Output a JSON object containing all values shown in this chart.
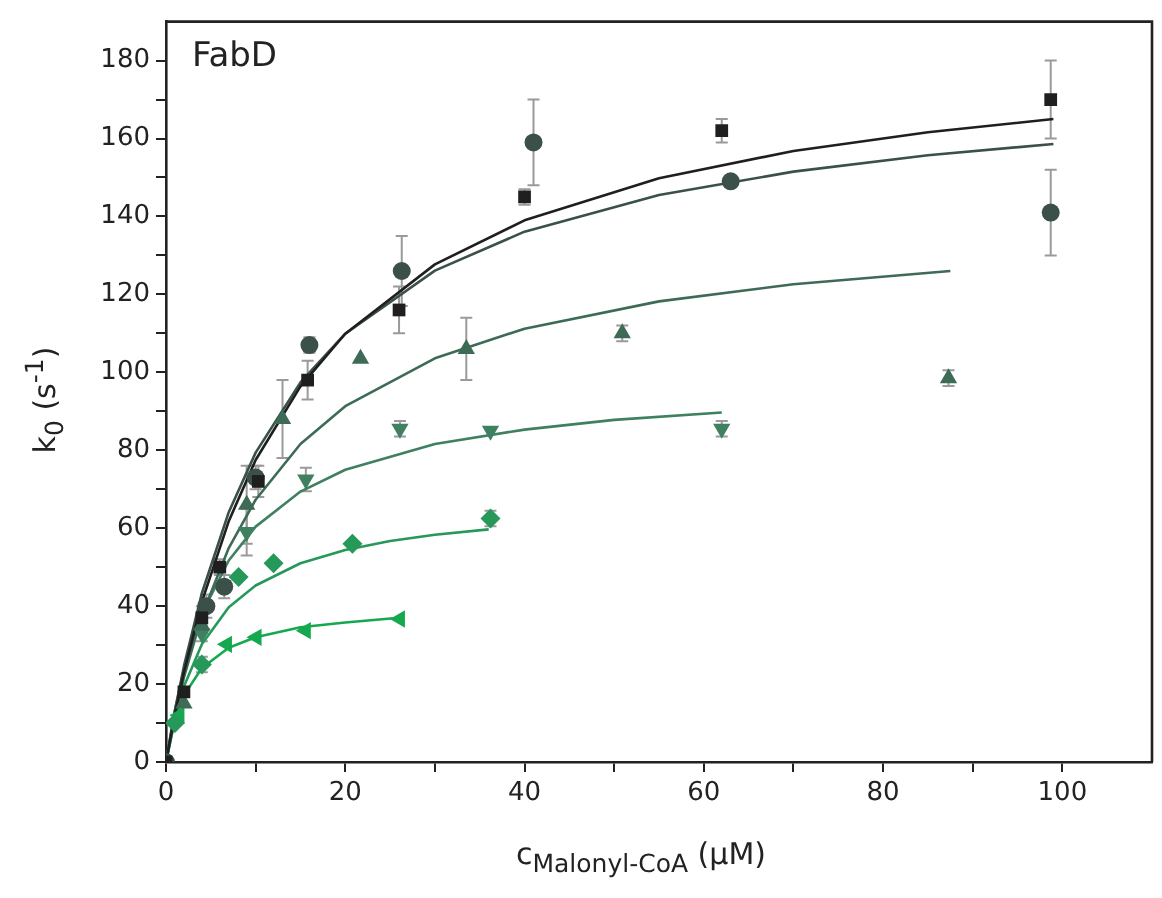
{
  "chart_data": {
    "type": "scatter",
    "title": "FabD",
    "xlabel": "c$_{Malonyl-CoA}$  (μM)",
    "ylabel": "k$_{0}$ (s$^{-1}$)",
    "xlim": [
      0,
      110
    ],
    "ylim": [
      0,
      190
    ],
    "xticks": [
      0,
      {
        "value": 10,
        "label": null
      },
      20,
      {
        "value": 30,
        "label": null
      },
      40,
      {
        "value": 50,
        "label": null
      },
      60,
      {
        "value": 70,
        "label": null
      },
      80,
      {
        "value": 90,
        "label": null
      },
      100
    ],
    "yticks": [
      0,
      {
        "value": 10,
        "label": null
      },
      20,
      {
        "value": 30,
        "label": null
      },
      40,
      {
        "value": 50,
        "label": null
      },
      60,
      {
        "value": 70,
        "label": null
      },
      80,
      {
        "value": 90,
        "label": null
      },
      100,
      {
        "value": 110,
        "label": null
      },
      120,
      {
        "value": 130,
        "label": null
      },
      140,
      {
        "value": 150,
        "label": null
      },
      160,
      {
        "value": 170,
        "label": null
      },
      180
    ],
    "grid": false,
    "legend": false,
    "series": [
      {
        "type": "line",
        "marker": "none",
        "color": "#1f1f1f",
        "x": [
          0,
          1,
          2,
          4,
          7,
          10,
          15,
          20,
          30,
          40,
          55,
          70,
          85,
          99
        ],
        "values": [
          0,
          12.3,
          23,
          41.1,
          61.8,
          77.5,
          96.4,
          109.9,
          127.7,
          139,
          149.8,
          156.8,
          161.6,
          165
        ]
      },
      {
        "type": "line",
        "marker": "none",
        "color": "#3b5048",
        "x": [
          0,
          1,
          2,
          4,
          7,
          10,
          15,
          20,
          30,
          40,
          55,
          70,
          85,
          99
        ],
        "values": [
          0,
          13.2,
          24.6,
          43.3,
          64.1,
          79.4,
          97.4,
          109.9,
          126.1,
          136.1,
          145.5,
          151.5,
          155.7,
          158.6
        ]
      },
      {
        "type": "line",
        "marker": "none",
        "color": "#3d6b55",
        "x": [
          0,
          1,
          2,
          4,
          7,
          10,
          15,
          20,
          30,
          40,
          55,
          70,
          87.5
        ],
        "values": [
          0,
          11.7,
          21.7,
          37.6,
          54.9,
          67.3,
          81.6,
          91.3,
          103.6,
          111.2,
          118.2,
          122.6,
          126
        ]
      },
      {
        "type": "line",
        "marker": "none",
        "color": "#3e8060",
        "x": [
          0,
          1,
          2,
          4,
          7,
          10,
          15,
          20,
          30,
          40,
          50,
          62
        ],
        "values": [
          0,
          13.4,
          23.6,
          38.1,
          51.7,
          60.4,
          69.4,
          75,
          81.6,
          85.3,
          87.8,
          89.7
        ]
      },
      {
        "type": "line",
        "marker": "none",
        "color": "#25985a",
        "x": [
          0,
          1,
          2,
          4,
          7,
          10,
          15,
          20,
          25,
          30,
          36
        ],
        "values": [
          0,
          11.3,
          19.4,
          30.2,
          39.7,
          45.3,
          51,
          54.4,
          56.7,
          58.3,
          59.7
        ]
      },
      {
        "type": "line",
        "marker": "none",
        "color": "#15a84e",
        "x": [
          0,
          1,
          2,
          4,
          7,
          10,
          15,
          20,
          26
        ],
        "values": [
          0,
          10.8,
          17.1,
          24.1,
          29.3,
          32,
          34.6,
          35.8,
          37
        ]
      },
      {
        "type": "scatter",
        "marker": "square",
        "color": "#1f1f1f",
        "x": [
          0,
          2,
          4,
          6,
          10.3,
          15.8,
          26,
          40,
          62,
          98.7
        ],
        "values": [
          0,
          18,
          37,
          50,
          72,
          98,
          116,
          145,
          162,
          170
        ],
        "errors": [
          null,
          null,
          3,
          2,
          4,
          5,
          6,
          2,
          3,
          10
        ]
      },
      {
        "type": "scatter",
        "marker": "circle",
        "color": "#3b5048",
        "x": [
          0,
          2,
          4.5,
          6.5,
          10,
          16,
          26.3,
          41,
          63,
          98.7
        ],
        "values": [
          0,
          null,
          40,
          45,
          73,
          107,
          126,
          159,
          149,
          141
        ],
        "errors": [
          null,
          null,
          3,
          3,
          3,
          2,
          9,
          11,
          null,
          11
        ]
      },
      {
        "type": "scatter",
        "marker": "triangle",
        "color": "#3d6b55",
        "x": [
          2,
          4,
          9,
          13,
          21.7,
          33.5,
          50.9,
          87.3
        ],
        "values": [
          15,
          35,
          66,
          88,
          103.5,
          106,
          110,
          98.5
        ],
        "errors": [
          null,
          2,
          10,
          10,
          null,
          8,
          2,
          2
        ]
      },
      {
        "type": "scatter",
        "marker": "triangle-down",
        "color": "#3e8060",
        "x": [
          4,
          6.5,
          9,
          15.6,
          26.1,
          36.2,
          62
        ],
        "values": [
          33,
          null,
          59,
          72.5,
          85.5,
          85,
          85.5
        ],
        "errors": [
          2,
          null,
          6,
          3,
          2,
          null,
          2
        ]
      },
      {
        "type": "scatter",
        "marker": "diamond",
        "color": "#25985a",
        "x": [
          1,
          2,
          4,
          8.1,
          12,
          20.8,
          36.2
        ],
        "values": [
          10,
          null,
          25,
          47.5,
          51,
          56,
          62.5
        ],
        "errors": [
          null,
          null,
          2,
          null,
          null,
          null,
          2
        ]
      },
      {
        "type": "scatter",
        "marker": "triangle-left",
        "color": "#15a84e",
        "x": [
          1.5,
          4.2,
          6.8,
          10.1,
          15.6,
          26.1
        ],
        "values": [
          12,
          null,
          30.2,
          32,
          33.7,
          36.7
        ]
      }
    ]
  }
}
